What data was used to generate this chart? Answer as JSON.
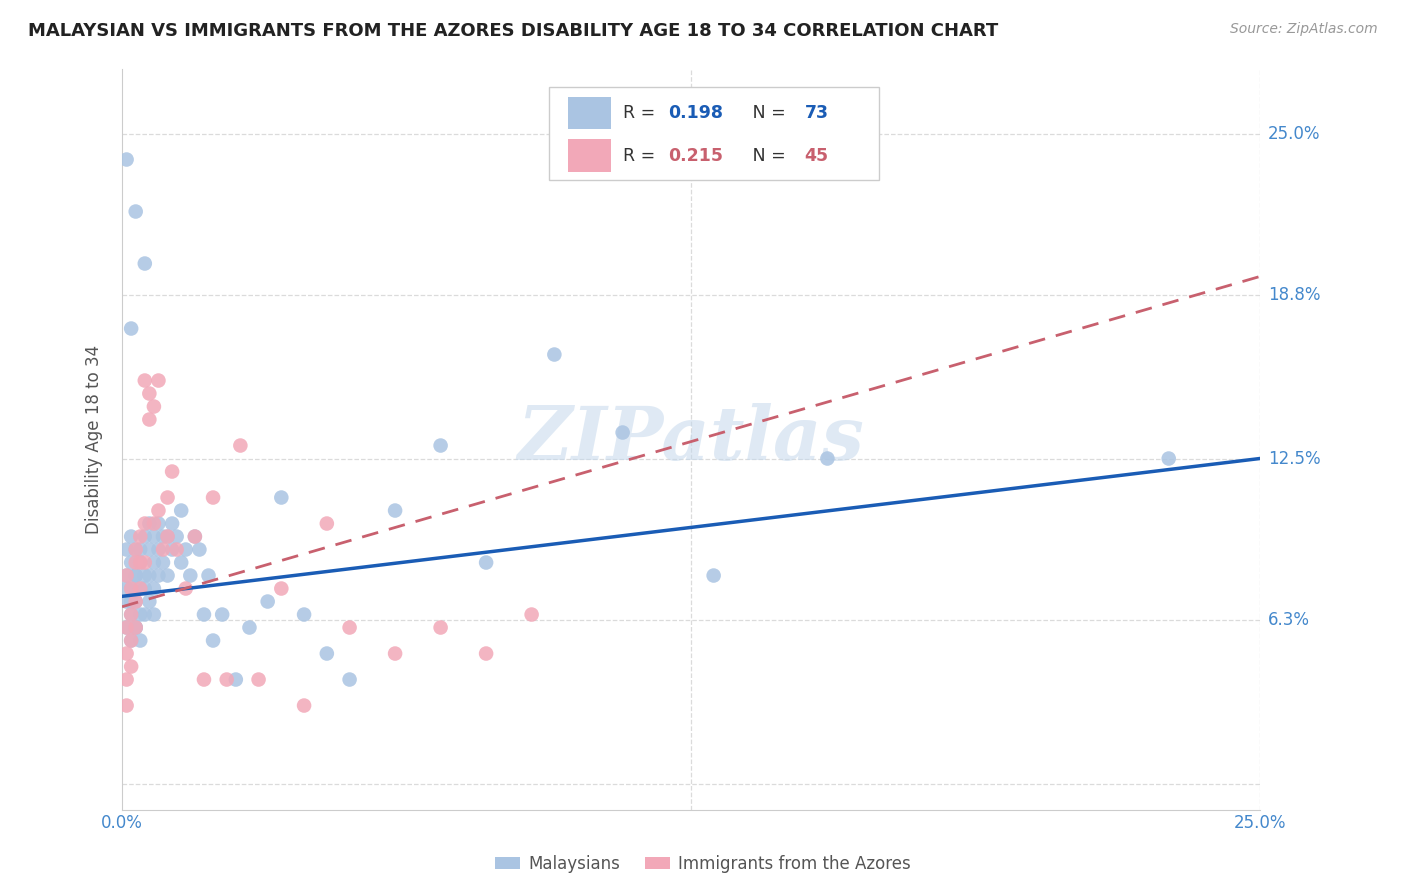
{
  "title": "MALAYSIAN VS IMMIGRANTS FROM THE AZORES DISABILITY AGE 18 TO 34 CORRELATION CHART",
  "source": "Source: ZipAtlas.com",
  "ylabel": "Disability Age 18 to 34",
  "legend_blue_r": "0.198",
  "legend_blue_n": "73",
  "legend_pink_r": "0.215",
  "legend_pink_n": "45",
  "watermark": "ZIPatlas",
  "blue_color": "#aac4e2",
  "pink_color": "#f2a8b8",
  "blue_line_color": "#1a5cb5",
  "pink_line_color": "#c8606e",
  "background_color": "#ffffff",
  "grid_color": "#d8d8d8",
  "title_color": "#222222",
  "axis_label_color": "#4488cc",
  "xmin": 0.0,
  "xmax": 0.25,
  "ymin": -0.01,
  "ymax": 0.275,
  "blue_line_x0": 0.0,
  "blue_line_x1": 0.25,
  "blue_line_y0": 0.072,
  "blue_line_y1": 0.125,
  "pink_line_x0": 0.0,
  "pink_line_x1": 0.25,
  "pink_line_y0": 0.068,
  "pink_line_y1": 0.195,
  "malaysians_x": [
    0.001,
    0.001,
    0.001,
    0.001,
    0.001,
    0.002,
    0.002,
    0.002,
    0.002,
    0.002,
    0.002,
    0.003,
    0.003,
    0.003,
    0.003,
    0.003,
    0.003,
    0.004,
    0.004,
    0.004,
    0.004,
    0.004,
    0.005,
    0.005,
    0.005,
    0.005,
    0.006,
    0.006,
    0.006,
    0.006,
    0.007,
    0.007,
    0.007,
    0.007,
    0.008,
    0.008,
    0.008,
    0.009,
    0.009,
    0.01,
    0.01,
    0.011,
    0.011,
    0.012,
    0.013,
    0.013,
    0.014,
    0.015,
    0.016,
    0.017,
    0.018,
    0.019,
    0.02,
    0.022,
    0.025,
    0.028,
    0.032,
    0.035,
    0.04,
    0.045,
    0.05,
    0.06,
    0.07,
    0.08,
    0.095,
    0.11,
    0.13,
    0.155,
    0.23,
    0.005,
    0.003,
    0.002,
    0.001
  ],
  "malaysians_y": [
    0.08,
    0.07,
    0.09,
    0.06,
    0.075,
    0.085,
    0.065,
    0.095,
    0.075,
    0.055,
    0.07,
    0.08,
    0.06,
    0.09,
    0.07,
    0.08,
    0.06,
    0.075,
    0.085,
    0.065,
    0.09,
    0.055,
    0.08,
    0.075,
    0.095,
    0.065,
    0.1,
    0.08,
    0.07,
    0.09,
    0.085,
    0.075,
    0.095,
    0.065,
    0.09,
    0.08,
    0.1,
    0.085,
    0.095,
    0.08,
    0.095,
    0.1,
    0.09,
    0.095,
    0.085,
    0.105,
    0.09,
    0.08,
    0.095,
    0.09,
    0.065,
    0.08,
    0.055,
    0.065,
    0.04,
    0.06,
    0.07,
    0.11,
    0.065,
    0.05,
    0.04,
    0.105,
    0.13,
    0.085,
    0.165,
    0.135,
    0.08,
    0.125,
    0.125,
    0.2,
    0.22,
    0.175,
    0.24
  ],
  "azores_x": [
    0.001,
    0.001,
    0.001,
    0.001,
    0.002,
    0.002,
    0.002,
    0.003,
    0.003,
    0.003,
    0.003,
    0.004,
    0.004,
    0.004,
    0.005,
    0.005,
    0.005,
    0.006,
    0.006,
    0.007,
    0.007,
    0.008,
    0.008,
    0.009,
    0.01,
    0.01,
    0.011,
    0.012,
    0.014,
    0.016,
    0.018,
    0.02,
    0.023,
    0.026,
    0.03,
    0.035,
    0.04,
    0.045,
    0.05,
    0.06,
    0.07,
    0.08,
    0.09,
    0.001,
    0.002
  ],
  "azores_y": [
    0.06,
    0.05,
    0.08,
    0.04,
    0.075,
    0.065,
    0.055,
    0.085,
    0.07,
    0.06,
    0.09,
    0.095,
    0.085,
    0.075,
    0.1,
    0.155,
    0.085,
    0.15,
    0.14,
    0.145,
    0.1,
    0.155,
    0.105,
    0.09,
    0.11,
    0.095,
    0.12,
    0.09,
    0.075,
    0.095,
    0.04,
    0.11,
    0.04,
    0.13,
    0.04,
    0.075,
    0.03,
    0.1,
    0.06,
    0.05,
    0.06,
    0.05,
    0.065,
    0.03,
    0.045
  ]
}
